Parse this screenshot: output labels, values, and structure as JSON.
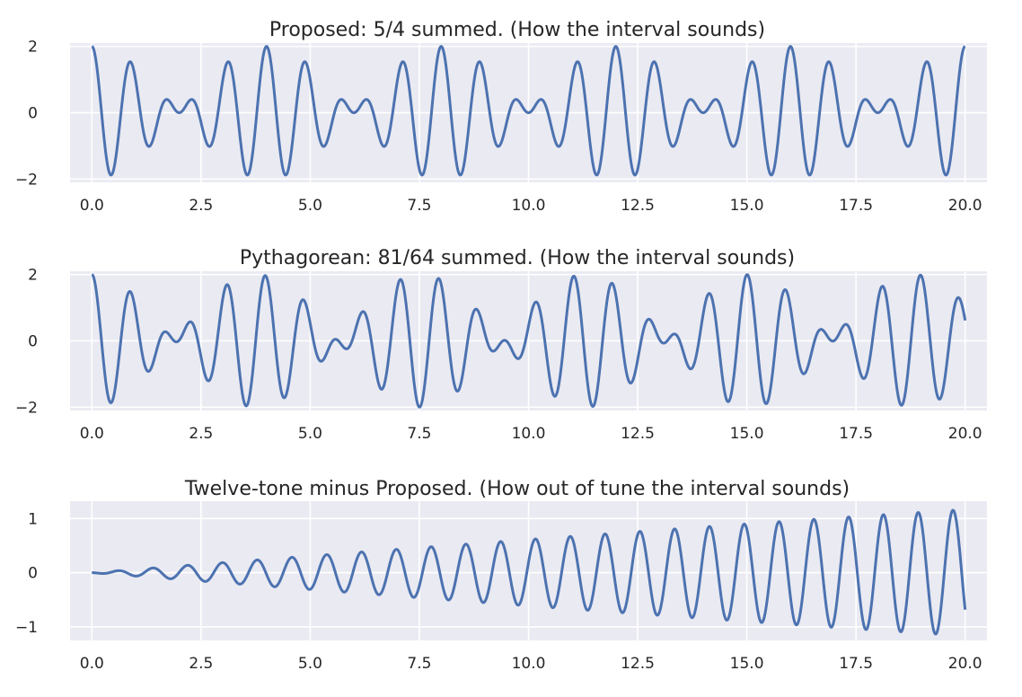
{
  "chart_data": [
    {
      "type": "line",
      "title": "Proposed: 5/4 summed. (How the interval sounds)",
      "xlabel": "",
      "ylabel": "",
      "xlim": [
        -0.5,
        20.5
      ],
      "ylim": [
        -2.1,
        2.1
      ],
      "grid": true,
      "x_ticks": [
        0.0,
        2.5,
        5.0,
        7.5,
        10.0,
        12.5,
        15.0,
        17.5,
        20.0
      ],
      "x_tick_labels": [
        "0.0",
        "2.5",
        "5.0",
        "7.5",
        "10.0",
        "12.5",
        "15.0",
        "17.5",
        "20.0"
      ],
      "y_ticks": [
        -2,
        0,
        2
      ],
      "y_tick_labels": [
        "−2",
        "0",
        "2"
      ],
      "series": [
        {
          "function": "cos(2*pi*f1*x) + cos(2*pi*f2*x)",
          "f1": 1.0,
          "f2": 1.25,
          "x_range": [
            0,
            20
          ],
          "samples": 2000,
          "color": "#4c72b0"
        }
      ]
    },
    {
      "type": "line",
      "title": "Pythagorean: 81/64 summed. (How the interval sounds)",
      "xlabel": "",
      "ylabel": "",
      "xlim": [
        -0.5,
        20.5
      ],
      "ylim": [
        -2.1,
        2.1
      ],
      "grid": true,
      "x_ticks": [
        0.0,
        2.5,
        5.0,
        7.5,
        10.0,
        12.5,
        15.0,
        17.5,
        20.0
      ],
      "x_tick_labels": [
        "0.0",
        "2.5",
        "5.0",
        "7.5",
        "10.0",
        "12.5",
        "15.0",
        "17.5",
        "20.0"
      ],
      "y_ticks": [
        -2,
        0,
        2
      ],
      "y_tick_labels": [
        "−2",
        "0",
        "2"
      ],
      "series": [
        {
          "function": "cos(2*pi*f1*x) + cos(2*pi*f2*x)",
          "f1": 1.0,
          "f2": 1.265625,
          "x_range": [
            0,
            20
          ],
          "samples": 2000,
          "color": "#4c72b0"
        }
      ]
    },
    {
      "type": "line",
      "title": "Twelve-tone minus Proposed. (How out of tune the interval sounds)",
      "xlabel": "",
      "ylabel": "",
      "xlim": [
        -0.5,
        20.5
      ],
      "ylim": [
        -1.25,
        1.32
      ],
      "grid": true,
      "x_ticks": [
        0.0,
        2.5,
        5.0,
        7.5,
        10.0,
        12.5,
        15.0,
        17.5,
        20.0
      ],
      "x_tick_labels": [
        "0.0",
        "2.5",
        "5.0",
        "7.5",
        "10.0",
        "12.5",
        "15.0",
        "17.5",
        "20.0"
      ],
      "y_ticks": [
        -1,
        0,
        1
      ],
      "y_tick_labels": [
        "−1",
        "0",
        "1"
      ],
      "series": [
        {
          "function": "cos(2*pi*f1*x) - cos(2*pi*f2*x)",
          "f1": 1.259921,
          "f2": 1.25,
          "x_range": [
            0,
            20
          ],
          "samples": 2000,
          "color": "#4c72b0"
        }
      ]
    }
  ]
}
